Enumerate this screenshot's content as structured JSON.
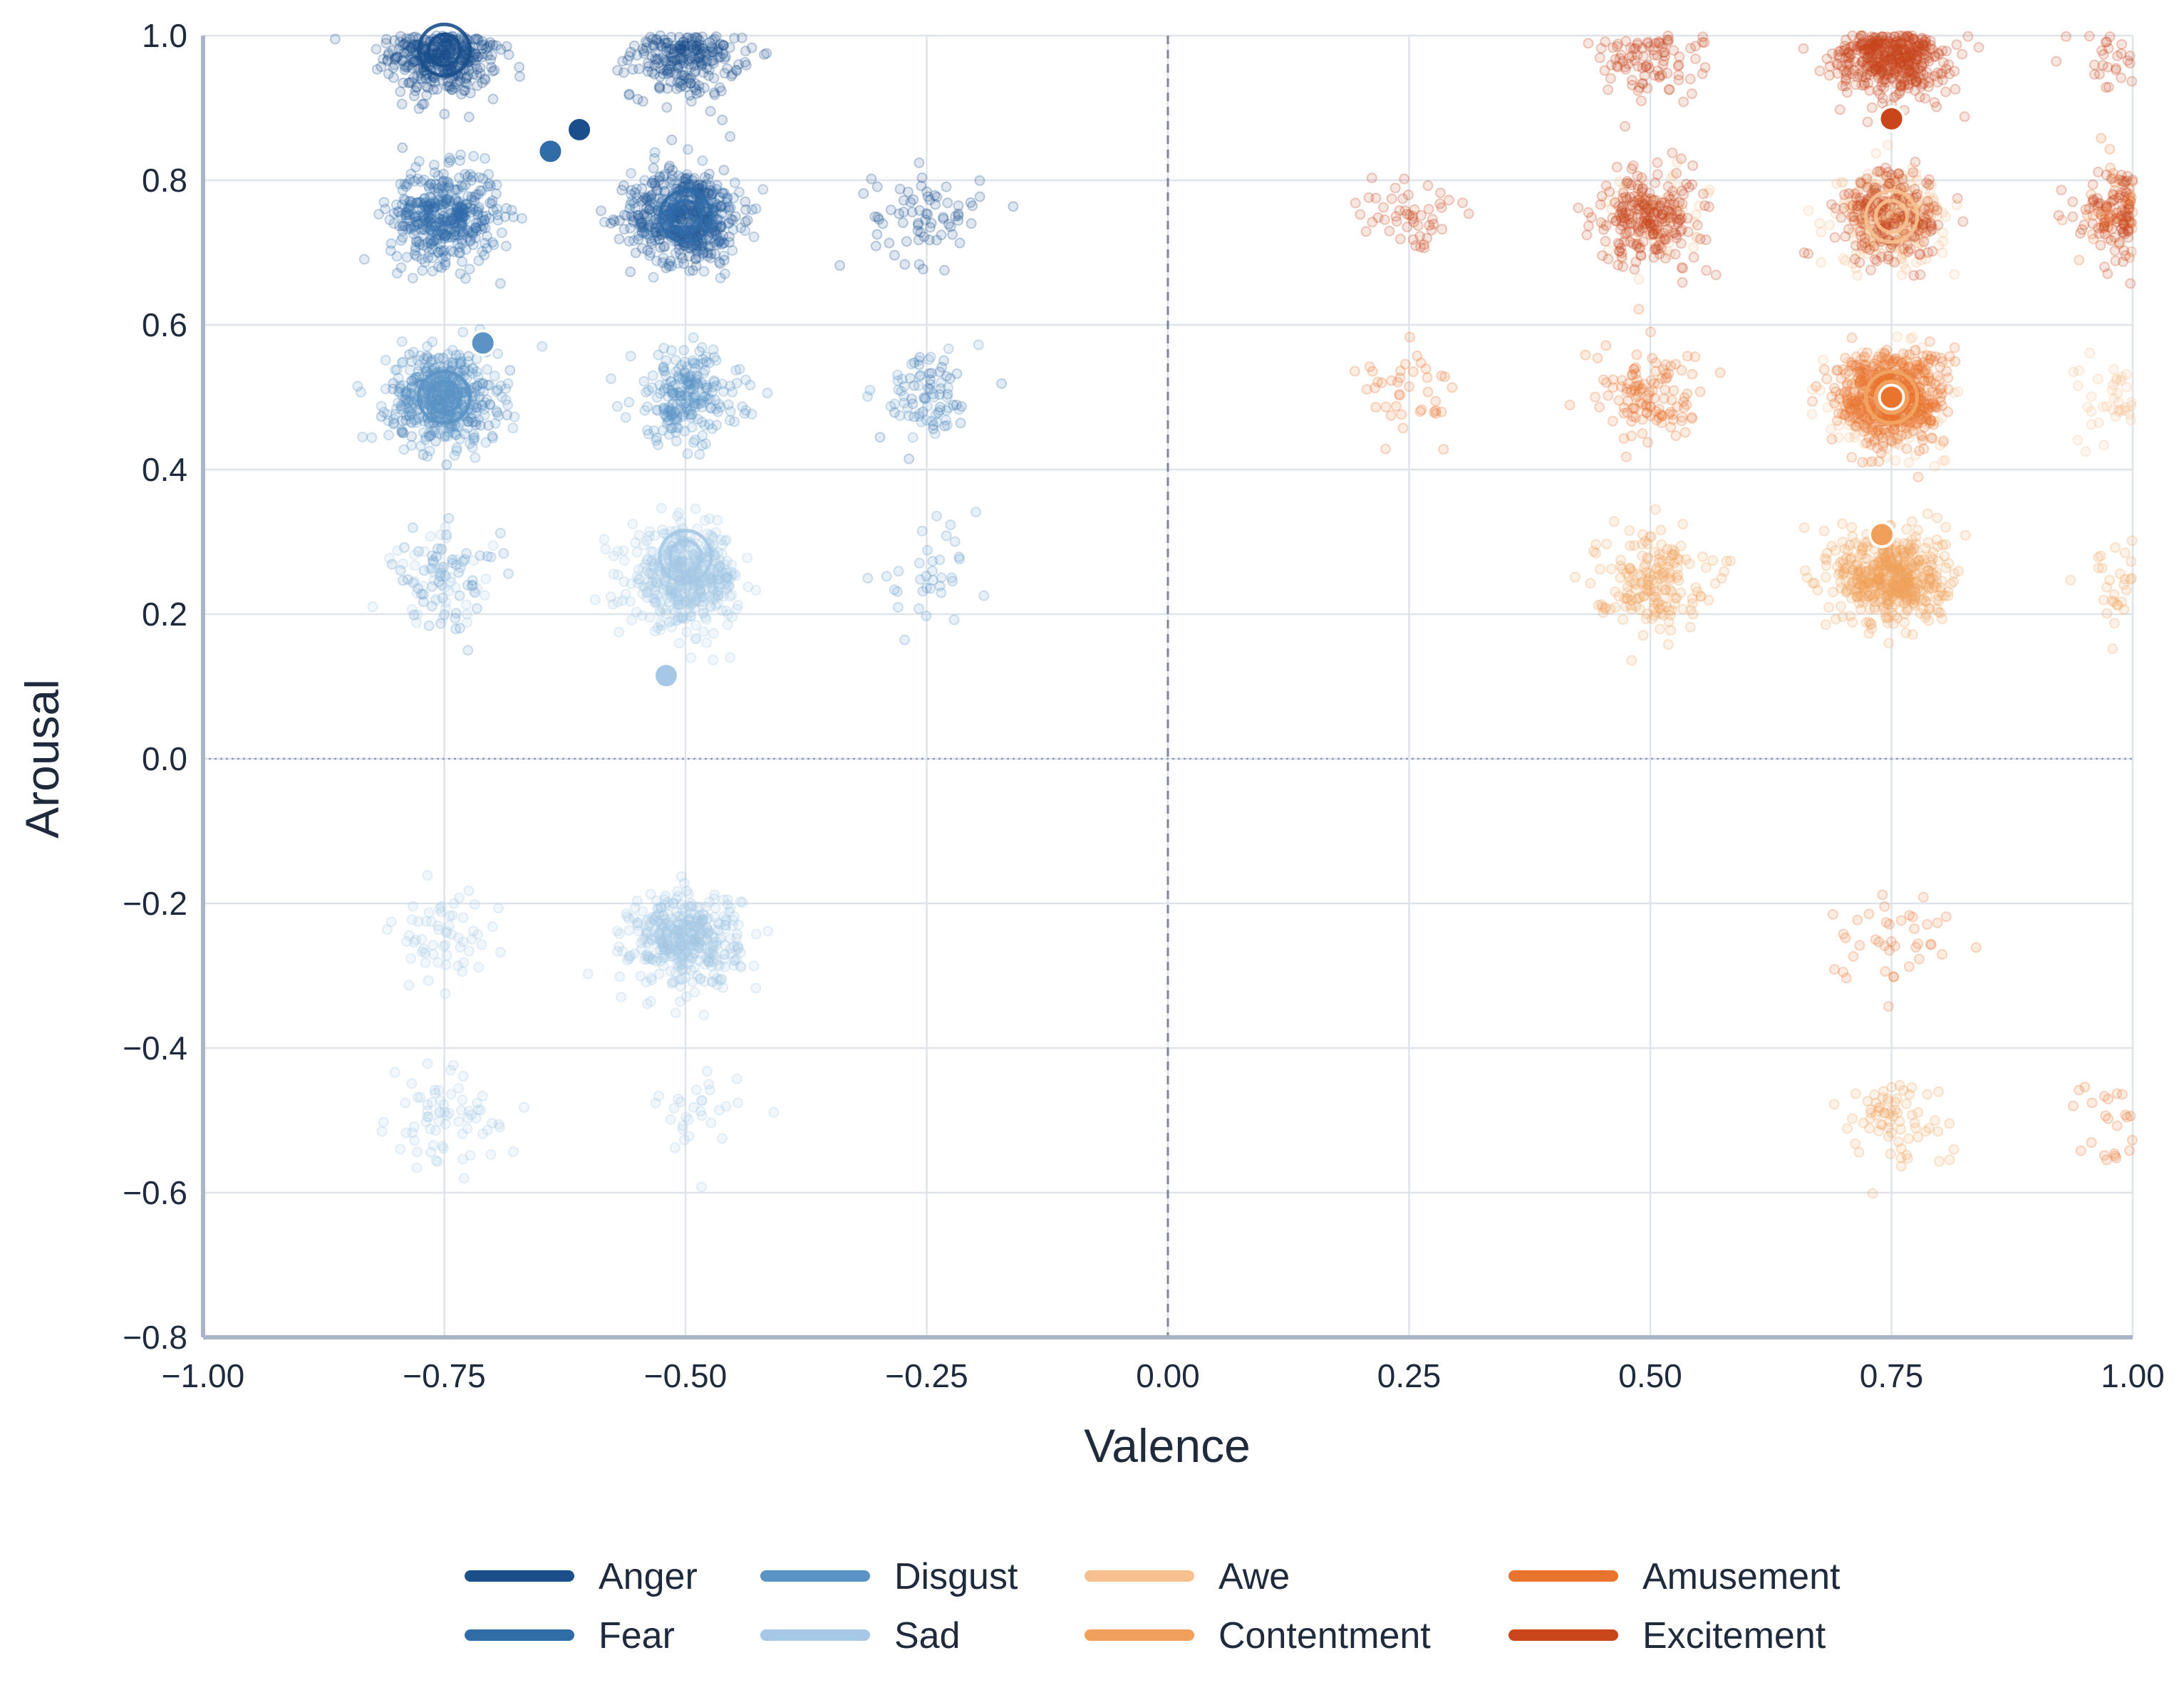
{
  "chart_data": {
    "type": "scatter",
    "title": "",
    "xlabel": "Valence",
    "ylabel": "Arousal",
    "xlim": [
      -1.0,
      1.0
    ],
    "ylim": [
      -0.8,
      1.0
    ],
    "xticks": [
      -1.0,
      -0.75,
      -0.5,
      -0.25,
      0.0,
      0.25,
      0.5,
      0.75,
      1.0
    ],
    "xtick_labels": [
      "−1.00",
      "−0.75",
      "−0.50",
      "−0.25",
      "0.00",
      "0.25",
      "0.50",
      "0.75",
      "1.00"
    ],
    "yticks": [
      -0.8,
      -0.6,
      -0.4,
      -0.2,
      0.0,
      0.2,
      0.4,
      0.6,
      0.8,
      1.0
    ],
    "ytick_labels": [
      "−0.8",
      "−0.6",
      "−0.4",
      "−0.2",
      "0.0",
      "0.2",
      "0.4",
      "0.6",
      "0.8",
      "1.0"
    ],
    "grid": true,
    "reference_lines": {
      "vertical_dashed_at_x": 0.0,
      "horizontal_dotted_at_y": 0.0
    },
    "legend_position": "bottom-center",
    "series": [
      {
        "name": "Anger",
        "color": "#1a4f8b",
        "clusters": [
          [
            -0.75,
            0.98,
            520
          ],
          [
            -0.5,
            0.98,
            330
          ],
          [
            -0.5,
            0.75,
            360
          ],
          [
            -0.25,
            0.75,
            70
          ]
        ],
        "centroid": [
          -0.61,
          0.87
        ]
      },
      {
        "name": "Fear",
        "color": "#2f6ca8",
        "clusters": [
          [
            -0.75,
            0.75,
            420
          ],
          [
            -0.5,
            0.75,
            240
          ],
          [
            -0.75,
            0.5,
            120
          ],
          [
            -0.25,
            0.5,
            40
          ]
        ],
        "centroid": [
          -0.64,
          0.84
        ]
      },
      {
        "name": "Disgust",
        "color": "#5b93c4",
        "clusters": [
          [
            -0.75,
            0.5,
            380
          ],
          [
            -0.5,
            0.5,
            230
          ],
          [
            -0.25,
            0.5,
            45
          ],
          [
            -0.75,
            0.25,
            60
          ],
          [
            -0.25,
            0.25,
            35
          ]
        ],
        "centroid": [
          -0.71,
          0.575
        ]
      },
      {
        "name": "Sad",
        "color": "#a6c8e6",
        "clusters": [
          [
            -0.5,
            0.25,
            480
          ],
          [
            -0.5,
            -0.25,
            420
          ],
          [
            -0.75,
            0.25,
            50
          ],
          [
            -0.75,
            -0.25,
            60
          ],
          [
            -0.75,
            -0.5,
            70
          ],
          [
            -0.5,
            -0.5,
            30
          ]
        ],
        "centroid": [
          -0.52,
          0.115
        ]
      },
      {
        "name": "Awe",
        "color": "#f6c18f",
        "clusters": [
          [
            0.75,
            0.75,
            300
          ],
          [
            0.75,
            0.5,
            250
          ],
          [
            0.5,
            0.75,
            60
          ],
          [
            1.0,
            0.5,
            80
          ]
        ],
        "centroid": [
          0.74,
          0.31
        ]
      },
      {
        "name": "Contentment",
        "color": "#f0a05a",
        "clusters": [
          [
            0.75,
            0.25,
            520
          ],
          [
            0.5,
            0.25,
            180
          ],
          [
            1.0,
            0.25,
            60
          ],
          [
            0.75,
            -0.5,
            70
          ]
        ],
        "centroid": [
          0.74,
          0.31
        ]
      },
      {
        "name": "Amusement",
        "color": "#e9742d",
        "clusters": [
          [
            0.75,
            0.5,
            560
          ],
          [
            0.5,
            0.5,
            120
          ],
          [
            0.25,
            0.5,
            40
          ],
          [
            1.0,
            0.75,
            120
          ],
          [
            1.0,
            -0.5,
            40
          ],
          [
            0.75,
            -0.25,
            40
          ]
        ],
        "centroid": [
          0.75,
          0.5
        ]
      },
      {
        "name": "Excitement",
        "color": "#c9461b",
        "clusters": [
          [
            0.75,
            0.98,
            600
          ],
          [
            0.5,
            0.98,
            120
          ],
          [
            1.0,
            0.98,
            80
          ],
          [
            0.5,
            0.75,
            230
          ],
          [
            0.75,
            0.75,
            200
          ],
          [
            1.0,
            0.75,
            160
          ],
          [
            0.25,
            0.75,
            50
          ]
        ],
        "centroid": [
          0.75,
          0.885
        ]
      }
    ],
    "centroid_rings": [
      {
        "x": -0.75,
        "y": 0.98,
        "color": "#1a4f8b"
      },
      {
        "x": -0.5,
        "y": 0.75,
        "color": "#2f6ca8"
      },
      {
        "x": -0.75,
        "y": 0.5,
        "color": "#5b93c4"
      },
      {
        "x": -0.5,
        "y": 0.28,
        "color": "#a6c8e6"
      },
      {
        "x": 0.75,
        "y": 0.75,
        "color": "#f6c18f"
      },
      {
        "x": 0.75,
        "y": 0.5,
        "color": "#f6c18f"
      },
      {
        "x": 0.75,
        "y": 0.5,
        "color": "#f0a05a"
      }
    ]
  }
}
